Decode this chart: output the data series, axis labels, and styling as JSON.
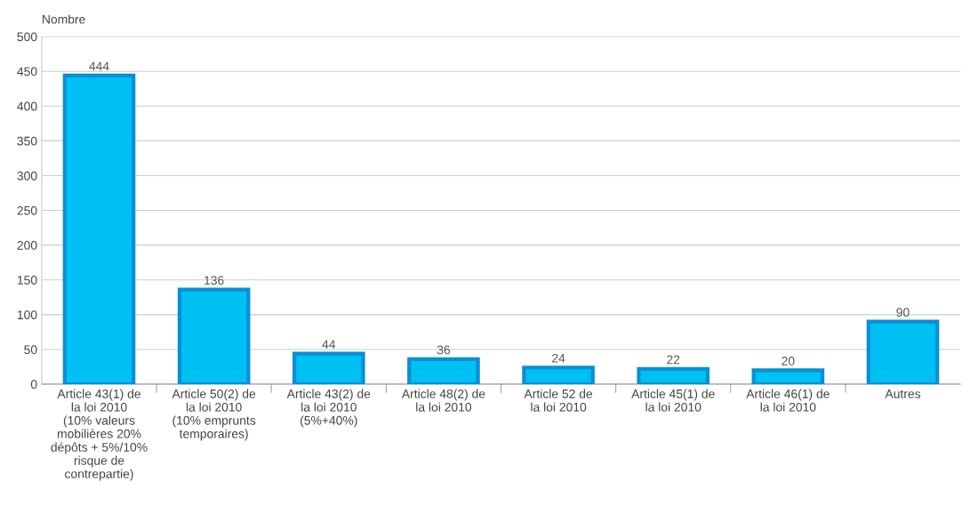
{
  "chart_data": {
    "type": "bar",
    "ylabel": "Nombre",
    "categories": [
      "Article 43(1) de\nla loi 2010\n(10% valeurs\nmobilières 20%\ndépôts + 5%/10%\nrisque de\ncontrepartie)",
      "Article 50(2) de\nla loi 2010\n(10% emprunts\ntemporaires)",
      "Article 43(2) de\nla loi 2010\n(5%+40%)",
      "Article 48(2) de\nla loi 2010",
      "Article 52 de\nla loi 2010",
      "Article 45(1) de\nla loi 2010",
      "Article 46(1) de\nla loi 2010",
      "Autres"
    ],
    "values": [
      444,
      136,
      44,
      36,
      24,
      22,
      20,
      90
    ],
    "color": "#00bff3",
    "ylim": [
      0,
      500
    ],
    "yticks": [
      0,
      50,
      100,
      150,
      200,
      250,
      300,
      350,
      400,
      450,
      500
    ],
    "grid": "y",
    "data_labels": true,
    "legend": false
  }
}
